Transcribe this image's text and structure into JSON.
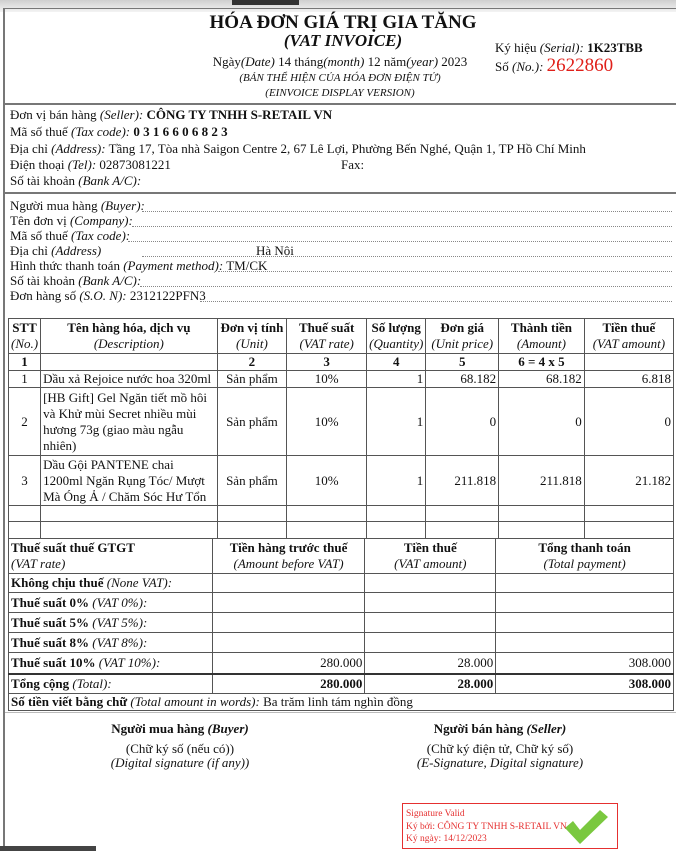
{
  "header": {
    "title": "HÓA ĐƠN GIÁ TRỊ GIA TĂNG",
    "subtitle": "(VAT INVOICE)",
    "date_label": "Ngày",
    "date_label_en": "(Date)",
    "day": "14",
    "month_label": "tháng",
    "month_label_en": "(month)",
    "month": "12",
    "year_label": "năm",
    "year_label_en": "(year)",
    "year": "2023",
    "display_vi": "(BẢN THỂ HIỆN CỦA HÓA ĐƠN ĐIỆN TỬ)",
    "display_en": "(EINVOICE DISPLAY VERSION)",
    "serial_label": "Ký hiệu",
    "serial_label_en": "(Serial):",
    "serial": "1K23TBB",
    "no_label": "Số",
    "no_label_en": "(No.):",
    "no": "2622860"
  },
  "seller": {
    "name_label": "Đơn vị bán hàng",
    "name_label_en": "(Seller):",
    "name": "CÔNG TY TNHH S-RETAIL VN",
    "tax_label": "Mã số thuế",
    "tax_label_en": "(Tax code):",
    "tax": "0 3 1 6 6 0 6 8 2 3",
    "address_label": "Địa chỉ",
    "address_label_en": "(Address):",
    "address": "Tầng 17, Tòa nhà Saigon Centre 2, 67 Lê Lợi, Phường Bến Nghé, Quận 1, TP Hồ Chí Minh",
    "tel_label": "Điện thoại",
    "tel_label_en": "(Tel):",
    "tel": "02873081221",
    "fax_label": "Fax:",
    "bank_label": "Số tài khoản",
    "bank_label_en": "(Bank A/C):"
  },
  "buyer": {
    "buyer_label": "Người mua hàng",
    "buyer_label_en": "(Buyer):",
    "buyer": "",
    "company_label": "Tên đơn vị",
    "company_label_en": "(Company):",
    "company": "",
    "tax_label": "Mã số thuế",
    "tax_label_en": "(Tax code):",
    "tax": "",
    "address_label": "Địa chỉ",
    "address_label_en": "(Address)",
    "address": "Hà Nội",
    "payment_label": "Hình thức thanh toán",
    "payment_label_en": "(Payment method):",
    "payment": "TM/CK",
    "bank_label": "Số tài khoản",
    "bank_label_en": "(Bank A/C):",
    "bank": "",
    "order_label": "Đơn hàng số",
    "order_label_en": "(S.O. N):",
    "order": "2312122PFN3"
  },
  "items_table": {
    "columns": [
      {
        "vi": "STT",
        "en": "(No.)",
        "idx": "1"
      },
      {
        "vi": "Tên hàng hóa, dịch vụ",
        "en": "(Description)",
        "idx": ""
      },
      {
        "vi": "Đơn vị tính",
        "en": "(Unit)",
        "idx": "2"
      },
      {
        "vi": "Thuế suất",
        "en": "(VAT rate)",
        "idx": "3"
      },
      {
        "vi": "Số lượng",
        "en": "(Quantity)",
        "idx": "4"
      },
      {
        "vi": "Đơn giá",
        "en": "(Unit price)",
        "idx": "5"
      },
      {
        "vi": "Thành tiền",
        "en": "(Amount)",
        "idx": "6 = 4 x 5"
      },
      {
        "vi": "Tiền thuế",
        "en": "(VAT amount)",
        "idx": ""
      }
    ],
    "rows": [
      {
        "no": "1",
        "desc": "Dầu xả Rejoice nước hoa 320ml",
        "unit": "Sản phẩm",
        "rate": "10%",
        "qty": "1",
        "price": "68.182",
        "amount": "68.182",
        "vat": "6.818"
      },
      {
        "no": "2",
        "desc": "[HB Gift] Gel Ngăn tiết mồ hôi và Khử mùi Secret nhiều mùi hương 73g (giao màu ngẫu nhiên)",
        "unit": "Sản phẩm",
        "rate": "10%",
        "qty": "1",
        "price": "0",
        "amount": "0",
        "vat": "0"
      },
      {
        "no": "3",
        "desc": "Dầu Gội PANTENE chai 1200ml Ngăn Rụng Tóc/ Mượt Mà Óng Ả / Chăm Sóc Hư Tổn",
        "unit": "Sản phẩm",
        "rate": "10%",
        "qty": "1",
        "price": "211.818",
        "amount": "211.818",
        "vat": "21.182"
      }
    ]
  },
  "summary": {
    "h_rate_vi": "Thuế suất thuế GTGT",
    "h_rate_en": "(VAT rate)",
    "h_before_vi": "Tiền hàng trước thuế",
    "h_before_en": "(Amount before VAT)",
    "h_vat_vi": "Tiền thuế",
    "h_vat_en": "(VAT amount)",
    "h_total_vi": "Tổng thanh toán",
    "h_total_en": "(Total payment)",
    "rows": [
      {
        "vi": "Không chịu thuế",
        "en": "(None VAT):",
        "before": "",
        "vat": "",
        "total": ""
      },
      {
        "vi": "Thuế suất 0%",
        "en": "(VAT 0%):",
        "before": "",
        "vat": "",
        "total": ""
      },
      {
        "vi": "Thuế suất 5%",
        "en": "(VAT 5%):",
        "before": "",
        "vat": "",
        "total": ""
      },
      {
        "vi": "Thuế suất 8%",
        "en": "(VAT 8%):",
        "before": "",
        "vat": "",
        "total": ""
      },
      {
        "vi": "Thuế suất 10%",
        "en": "(VAT 10%):",
        "before": "280.000",
        "vat": "28.000",
        "total": "308.000"
      }
    ],
    "total_vi": "Tổng cộng",
    "total_en": "(Total):",
    "total_before": "280.000",
    "total_vat": "28.000",
    "total_payment": "308.000",
    "words_vi": "Số tiền viết bằng chữ",
    "words_en": "(Total amount in words):",
    "words": "Ba trăm linh tám nghìn đồng"
  },
  "signatures": {
    "buyer_vi": "Người mua hàng",
    "buyer_en": "(Buyer)",
    "buyer_note_vi": "(Chữ ký số (nếu có))",
    "buyer_note_en": "(Digital signature (if any))",
    "seller_vi": "Người bán hàng",
    "seller_en": "(Seller)",
    "seller_note_vi": "(Chữ ký điện tử, Chữ ký số)",
    "seller_note_en": "(E-Signature, Digital signature)",
    "stamp_status": "Signature Valid",
    "stamp_signer": "Ký bởi: CÔNG TY TNHH S-RETAIL VN",
    "stamp_date": "Ký ngày: 14/12/2023",
    "stamp_color": "#e53030",
    "check_color": "#6cc22a"
  }
}
